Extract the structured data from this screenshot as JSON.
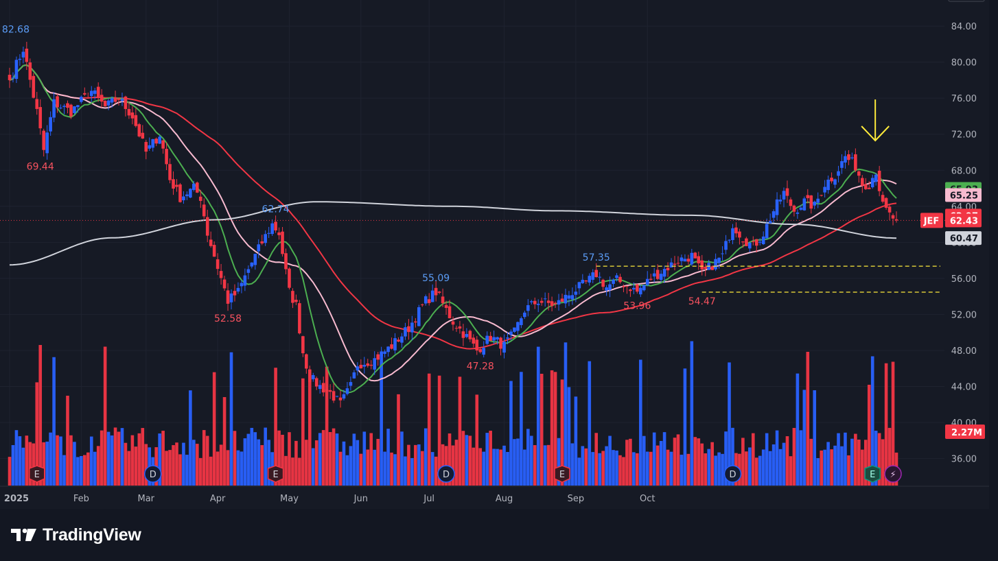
{
  "brand": {
    "name": "TradingView"
  },
  "colors": {
    "up": "#2962ff",
    "down": "#f23645",
    "ma_fast": "#4caf50",
    "ma_mid": "#f8bbd0",
    "ma_slow": "#f23645",
    "ma_long": "#d1d4dc",
    "annotation": "#ffeb3b"
  },
  "chart_data": {
    "type": "candlestick",
    "symbol": "JEF",
    "y_ticks": [
      "84.00",
      "80.00",
      "76.00",
      "72.00",
      "68.00",
      "64.00",
      "60.00",
      "56.00",
      "52.00",
      "48.00",
      "44.00",
      "40.00",
      "36.00"
    ],
    "ylim": [
      33.0,
      86.9
    ],
    "x_ticks": [
      "2025",
      "Feb",
      "Mar",
      "Apr",
      "May",
      "Jun",
      "Jul",
      "Aug",
      "Sep",
      "Oct"
    ],
    "price_tags": [
      {
        "label": "65.93",
        "value": 65.93,
        "color": "#4caf50",
        "text_color": "#131722"
      },
      {
        "label": "65.25",
        "value": 65.25,
        "color": "#f8bbd0",
        "text_color": "#131722"
      },
      {
        "label": "62.97",
        "value": 62.97,
        "color": "#f23645",
        "text_color": "#ffffff"
      },
      {
        "label": "62.43",
        "value": 62.43,
        "color": "#f23645",
        "text_color": "#ffffff"
      },
      {
        "label": "60.47",
        "value": 60.47,
        "color": "#d1d4dc",
        "text_color": "#131722"
      }
    ],
    "symbol_tag": {
      "label": "JEF",
      "value": 62.43
    },
    "volume_tag": "2.27M",
    "current_price": 62.43,
    "highs_lows": [
      {
        "label": "82.68",
        "x": 1,
        "y": 82.68,
        "kind": "high"
      },
      {
        "label": "69.44",
        "x": 9,
        "y": 69.44,
        "kind": "low"
      },
      {
        "label": "52.58",
        "x": 64,
        "y": 52.58,
        "kind": "low"
      },
      {
        "label": "62.74",
        "x": 78,
        "y": 62.74,
        "kind": "high"
      },
      {
        "label": "55.09",
        "x": 125,
        "y": 55.09,
        "kind": "high"
      },
      {
        "label": "47.28",
        "x": 138,
        "y": 47.28,
        "kind": "low"
      },
      {
        "label": "57.35",
        "x": 172,
        "y": 57.35,
        "kind": "high"
      },
      {
        "label": "53.96",
        "x": 184,
        "y": 53.96,
        "kind": "low"
      },
      {
        "label": "54.47",
        "x": 203,
        "y": 54.47,
        "kind": "low"
      }
    ],
    "support_lines": [
      57.35,
      54.47
    ],
    "events": [
      {
        "label": "E",
        "x": 8,
        "type": "earnings"
      },
      {
        "label": "D",
        "x": 42,
        "type": "dividend"
      },
      {
        "label": "E",
        "x": 78,
        "type": "earnings"
      },
      {
        "label": "D",
        "x": 128,
        "type": "dividend"
      },
      {
        "label": "E",
        "x": 162,
        "type": "earnings"
      },
      {
        "label": "D",
        "x": 212,
        "type": "dividend"
      },
      {
        "label": "E",
        "x": 253,
        "type": "earnings"
      },
      {
        "label": "⚡",
        "x": 259,
        "type": "split"
      }
    ],
    "anchors": [
      [
        0,
        78.0
      ],
      [
        4,
        81.5
      ],
      [
        8,
        74.5
      ],
      [
        10,
        70.2
      ],
      [
        13,
        75.5
      ],
      [
        18,
        74.5
      ],
      [
        24,
        76.8
      ],
      [
        28,
        75.0
      ],
      [
        32,
        76.0
      ],
      [
        36,
        74.0
      ],
      [
        40,
        70.0
      ],
      [
        44,
        72.0
      ],
      [
        47,
        67.0
      ],
      [
        50,
        65.0
      ],
      [
        54,
        66.0
      ],
      [
        56,
        65.0
      ],
      [
        58,
        61.0
      ],
      [
        62,
        56.0
      ],
      [
        64,
        53.5
      ],
      [
        67,
        54.5
      ],
      [
        70,
        57.0
      ],
      [
        74,
        60.0
      ],
      [
        77,
        62.0
      ],
      [
        79,
        61.0
      ],
      [
        82,
        54.5
      ],
      [
        84,
        53.0
      ],
      [
        86,
        47.8
      ],
      [
        88,
        45.0
      ],
      [
        91,
        44.0
      ],
      [
        94,
        43.3
      ],
      [
        97,
        42.0
      ],
      [
        100,
        44.0
      ],
      [
        102,
        46.5
      ],
      [
        107,
        47.0
      ],
      [
        112,
        48.5
      ],
      [
        117,
        50.5
      ],
      [
        122,
        53.5
      ],
      [
        125,
        54.5
      ],
      [
        128,
        52.5
      ],
      [
        130,
        51.2
      ],
      [
        134,
        49.5
      ],
      [
        137,
        48.0
      ],
      [
        141,
        49.5
      ],
      [
        145,
        48.5
      ],
      [
        148,
        50.0
      ],
      [
        151,
        52.5
      ],
      [
        155,
        53.5
      ],
      [
        160,
        53.0
      ],
      [
        165,
        54.5
      ],
      [
        169,
        55.5
      ],
      [
        172,
        56.5
      ],
      [
        175,
        55.0
      ],
      [
        178,
        55.8
      ],
      [
        182,
        55.0
      ],
      [
        184,
        54.5
      ],
      [
        188,
        56.0
      ],
      [
        192,
        57.0
      ],
      [
        196,
        58.0
      ],
      [
        200,
        58.5
      ],
      [
        203,
        56.5
      ],
      [
        206,
        57.5
      ],
      [
        209,
        58.5
      ],
      [
        212,
        62.0
      ],
      [
        215,
        60.5
      ],
      [
        218,
        59.5
      ],
      [
        221,
        61.0
      ],
      [
        224,
        63.5
      ],
      [
        227,
        65.5
      ],
      [
        230,
        63.5
      ],
      [
        233,
        64.5
      ],
      [
        236,
        64.0
      ],
      [
        239,
        66.5
      ],
      [
        242,
        67.5
      ],
      [
        245,
        69.5
      ],
      [
        248,
        68.5
      ],
      [
        250,
        66.5
      ],
      [
        252,
        66.5
      ],
      [
        254,
        68.0
      ],
      [
        256,
        64.0
      ],
      [
        258,
        63.0
      ],
      [
        260,
        62.43
      ]
    ],
    "ma_fast_label": "",
    "ma_long_points": [
      [
        0,
        57.5
      ],
      [
        30,
        60.5
      ],
      [
        60,
        62.5
      ],
      [
        90,
        64.5
      ],
      [
        130,
        64.0
      ],
      [
        160,
        63.5
      ],
      [
        200,
        63.0
      ],
      [
        230,
        62.0
      ],
      [
        260,
        60.47
      ]
    ]
  }
}
